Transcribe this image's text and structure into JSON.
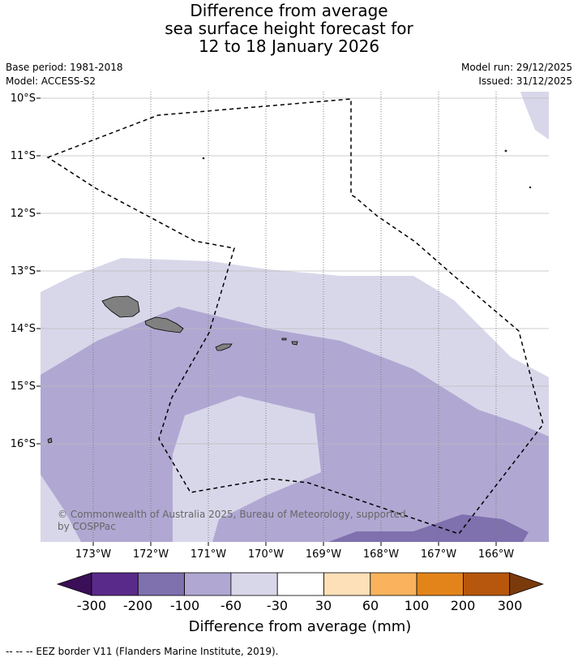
{
  "title": {
    "line1": "Difference from average",
    "line2": "sea surface height forecast for",
    "line3": "12 to 18 January 2026"
  },
  "meta": {
    "base_period": "Base period: 1981-2018",
    "model": "Model: ACCESS-S2",
    "model_run": "Model run: 29/12/2025",
    "issued": "Issued: 31/12/2025"
  },
  "map": {
    "lat_labels": [
      "10°S",
      "11°S",
      "12°S",
      "13°S",
      "14°S",
      "15°S",
      "16°S"
    ],
    "lon_labels": [
      "173°W",
      "172°W",
      "171°W",
      "170°W",
      "169°W",
      "168°W",
      "167°W",
      "166°W"
    ],
    "copyright_line1": "© Commonwealth of Australia 2025, Bureau of Meteorology, supported",
    "copyright_line2": "by COSPPac"
  },
  "colorbar": {
    "title": "Difference from average (mm)",
    "labels": [
      "-300",
      "-200",
      "-100",
      "-60",
      "-30",
      "30",
      "60",
      "100",
      "200",
      "300"
    ],
    "colors": [
      "#3b0f57",
      "#5a2a8a",
      "#7f70ae",
      "#b0a8d2",
      "#d8d7ea",
      "#ffffff",
      "#fde0b8",
      "#fab35c",
      "#e3841b",
      "#b6570d",
      "#7a3a0c"
    ]
  },
  "footnote": "--  --  -- EEZ border V11 (Flanders Marine Institute, 2019)."
}
